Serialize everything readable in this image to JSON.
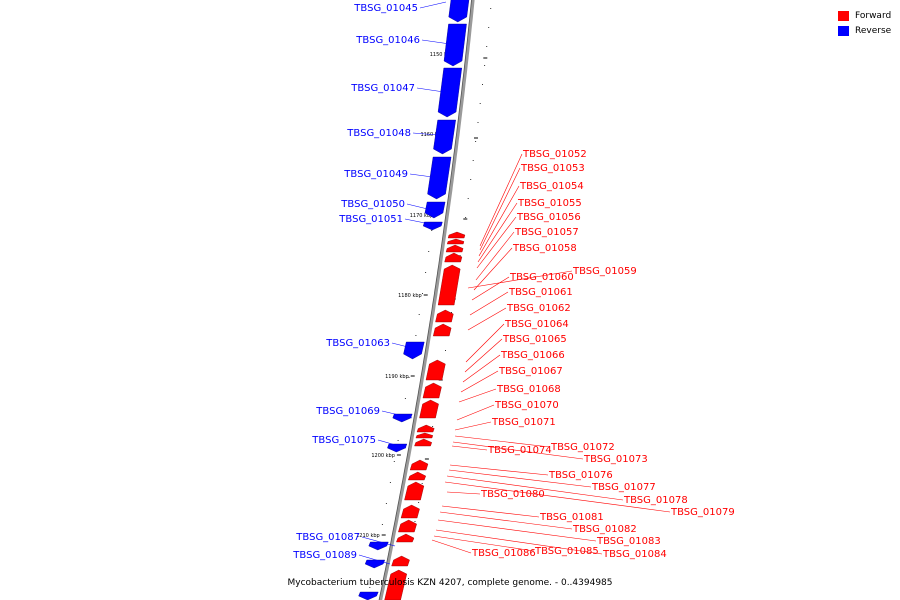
{
  "caption": "Mycobacterium tuberculosis KZN 4207, complete genome. - 0..4394985",
  "legend": [
    {
      "label": "Forward",
      "color": "#ff0000"
    },
    {
      "label": "Reverse",
      "color": "#0000ff"
    }
  ],
  "colors": {
    "forward": "#ff0000",
    "reverse": "#0000ff",
    "backbone": "#888888"
  },
  "ticks": [
    "1150 kbp",
    "1160 kbp",
    "1170 kbp",
    "1180 kbp",
    "1190 kbp",
    "1200 kbp",
    "1210 kbp"
  ],
  "reverse_genes": [
    "TBSG_01045",
    "TBSG_01046",
    "TBSG_01047",
    "TBSG_01048",
    "TBSG_01049",
    "TBSG_01050",
    "TBSG_01051",
    "TBSG_01063",
    "TBSG_01069",
    "TBSG_01075",
    "TBSG_01087",
    "TBSG_01089"
  ],
  "forward_genes": [
    "TBSG_01052",
    "TBSG_01053",
    "TBSG_01054",
    "TBSG_01055",
    "TBSG_01056",
    "TBSG_01057",
    "TBSG_01058",
    "TBSG_01059",
    "TBSG_01060",
    "TBSG_01061",
    "TBSG_01062",
    "TBSG_01064",
    "TBSG_01065",
    "TBSG_01066",
    "TBSG_01067",
    "TBSG_01068",
    "TBSG_01070",
    "TBSG_01071",
    "TBSG_01072",
    "TBSG_01073",
    "TBSG_01074",
    "TBSG_01076",
    "TBSG_01077",
    "TBSG_01078",
    "TBSG_01079",
    "TBSG_01080",
    "TBSG_01081",
    "TBSG_01082",
    "TBSG_01083",
    "TBSG_01084",
    "TBSG_01085",
    "TBSG_01086"
  ]
}
